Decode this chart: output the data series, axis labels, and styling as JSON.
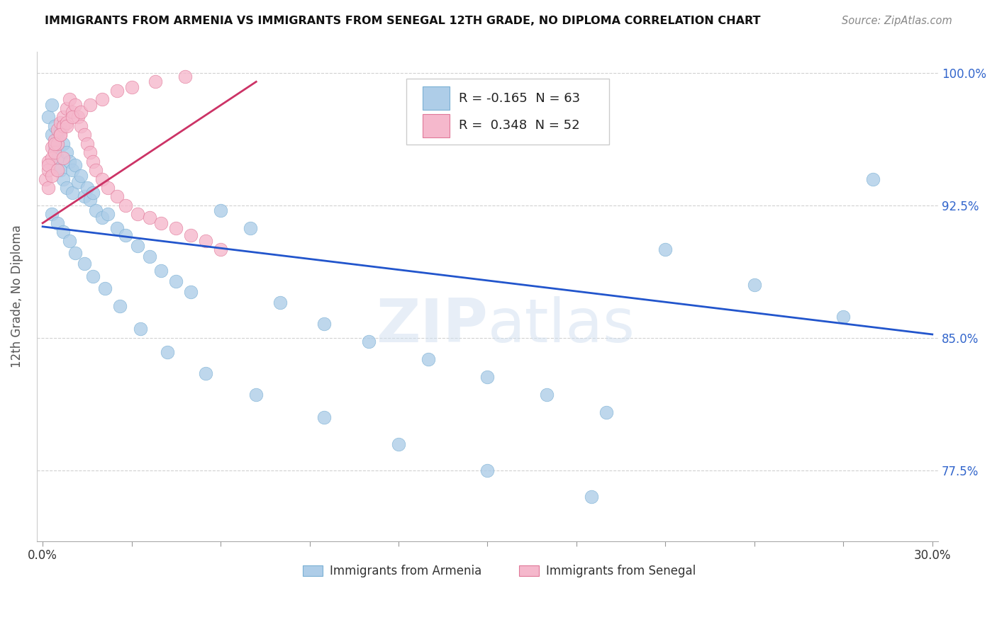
{
  "title": "IMMIGRANTS FROM ARMENIA VS IMMIGRANTS FROM SENEGAL 12TH GRADE, NO DIPLOMA CORRELATION CHART",
  "source": "Source: ZipAtlas.com",
  "ylabel": "12th Grade, No Diploma",
  "xlim": [
    -0.002,
    0.302
  ],
  "ylim": [
    0.735,
    1.012
  ],
  "yticks": [
    0.775,
    0.85,
    0.925,
    1.0
  ],
  "yticklabels": [
    "77.5%",
    "85.0%",
    "92.5%",
    "100.0%"
  ],
  "xticks": [
    0.0,
    0.03,
    0.06,
    0.09,
    0.12,
    0.15,
    0.18,
    0.21,
    0.24,
    0.27,
    0.3
  ],
  "xticklabels": [
    "0.0%",
    "",
    "",
    "",
    "",
    "",
    "",
    "",
    "",
    "",
    "30.0%"
  ],
  "series1_color": "#aecde8",
  "series1_edge": "#7ab0d4",
  "series2_color": "#f5b8cc",
  "series2_edge": "#e07898",
  "series1_label": "Immigrants from Armenia",
  "series2_label": "Immigrants from Senegal",
  "series1_R": "-0.165",
  "series1_N": "63",
  "series2_R": "0.348",
  "series2_N": "52",
  "trend1_color": "#2255cc",
  "trend2_color": "#cc3366",
  "watermark": "ZIPatlas",
  "background_color": "#ffffff",
  "grid_color": "#cccccc",
  "title_color": "#111111",
  "source_color": "#888888",
  "tick_color": "#3366cc",
  "trend1_x0": 0.0,
  "trend1_x1": 0.3,
  "trend1_y0": 0.913,
  "trend1_y1": 0.852,
  "trend2_x0": 0.0,
  "trend2_x1": 0.072,
  "trend2_y0": 0.915,
  "trend2_y1": 0.995,
  "armenia_x": [
    0.002,
    0.003,
    0.003,
    0.004,
    0.004,
    0.005,
    0.005,
    0.006,
    0.006,
    0.007,
    0.007,
    0.008,
    0.008,
    0.009,
    0.01,
    0.01,
    0.011,
    0.012,
    0.013,
    0.014,
    0.015,
    0.016,
    0.017,
    0.018,
    0.02,
    0.022,
    0.025,
    0.028,
    0.032,
    0.036,
    0.04,
    0.045,
    0.05,
    0.06,
    0.07,
    0.08,
    0.095,
    0.11,
    0.13,
    0.15,
    0.17,
    0.19,
    0.21,
    0.24,
    0.27,
    0.003,
    0.005,
    0.007,
    0.009,
    0.011,
    0.014,
    0.017,
    0.021,
    0.026,
    0.033,
    0.042,
    0.055,
    0.072,
    0.095,
    0.12,
    0.15,
    0.185,
    0.28
  ],
  "armenia_y": [
    0.975,
    0.982,
    0.965,
    0.97,
    0.958,
    0.963,
    0.952,
    0.968,
    0.945,
    0.96,
    0.94,
    0.955,
    0.935,
    0.95,
    0.945,
    0.932,
    0.948,
    0.938,
    0.942,
    0.93,
    0.935,
    0.928,
    0.932,
    0.922,
    0.918,
    0.92,
    0.912,
    0.908,
    0.902,
    0.896,
    0.888,
    0.882,
    0.876,
    0.922,
    0.912,
    0.87,
    0.858,
    0.848,
    0.838,
    0.828,
    0.818,
    0.808,
    0.9,
    0.88,
    0.862,
    0.92,
    0.915,
    0.91,
    0.905,
    0.898,
    0.892,
    0.885,
    0.878,
    0.868,
    0.855,
    0.842,
    0.83,
    0.818,
    0.805,
    0.79,
    0.775,
    0.76,
    0.94
  ],
  "senegal_x": [
    0.001,
    0.002,
    0.002,
    0.003,
    0.003,
    0.004,
    0.004,
    0.005,
    0.005,
    0.006,
    0.006,
    0.007,
    0.007,
    0.008,
    0.008,
    0.009,
    0.01,
    0.011,
    0.012,
    0.013,
    0.014,
    0.015,
    0.016,
    0.017,
    0.018,
    0.02,
    0.022,
    0.025,
    0.028,
    0.032,
    0.036,
    0.04,
    0.045,
    0.05,
    0.055,
    0.06,
    0.002,
    0.004,
    0.006,
    0.008,
    0.01,
    0.013,
    0.016,
    0.02,
    0.025,
    0.03,
    0.038,
    0.048,
    0.002,
    0.003,
    0.005,
    0.007
  ],
  "senegal_y": [
    0.94,
    0.95,
    0.945,
    0.958,
    0.952,
    0.962,
    0.955,
    0.968,
    0.96,
    0.972,
    0.965,
    0.975,
    0.97,
    0.98,
    0.972,
    0.985,
    0.978,
    0.982,
    0.975,
    0.97,
    0.965,
    0.96,
    0.955,
    0.95,
    0.945,
    0.94,
    0.935,
    0.93,
    0.925,
    0.92,
    0.918,
    0.915,
    0.912,
    0.908,
    0.905,
    0.9,
    0.948,
    0.96,
    0.965,
    0.97,
    0.975,
    0.978,
    0.982,
    0.985,
    0.99,
    0.992,
    0.995,
    0.998,
    0.935,
    0.942,
    0.945,
    0.952
  ]
}
